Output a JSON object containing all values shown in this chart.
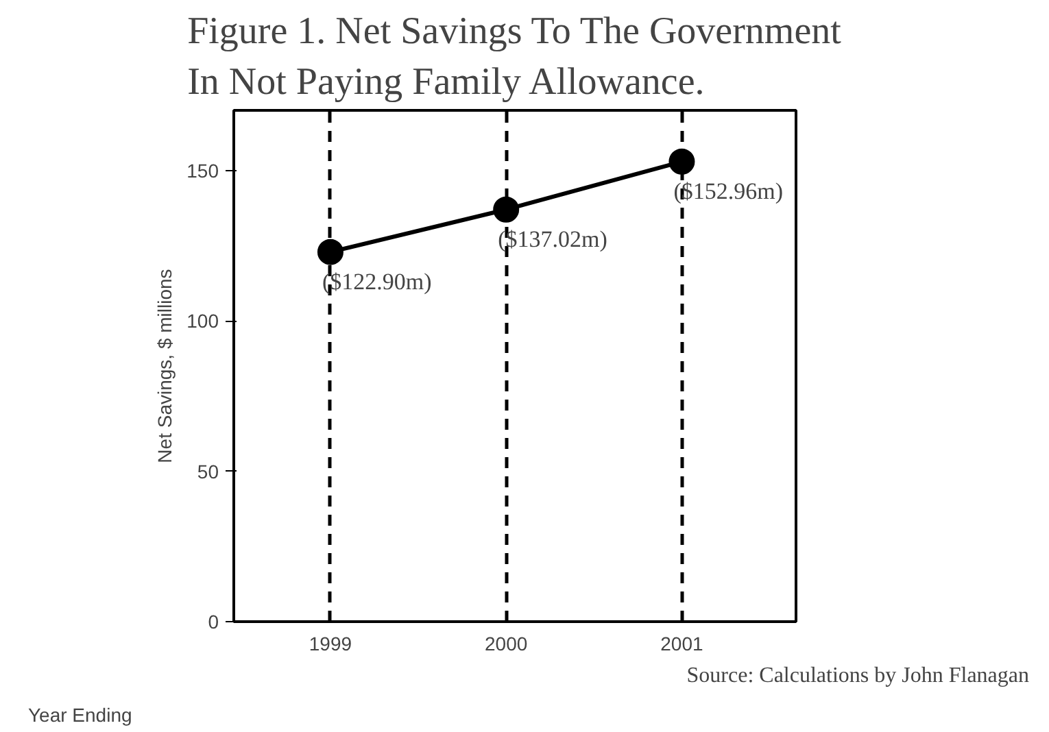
{
  "chart_data": {
    "type": "line",
    "title": "Figure 1. Net Savings To The Government\nIn Not Paying Family Allowance.",
    "xlabel": "Year Ending",
    "ylabel": "Net Savings, $ millions",
    "categories": [
      "1999",
      "2000",
      "2001"
    ],
    "series": [
      {
        "color": "#000000",
        "values": [
          122.9,
          137.02,
          152.96
        ],
        "value_labels": [
          "($122.90m)",
          "($137.02m)",
          "($152.96m)"
        ]
      }
    ],
    "ylim": [
      0,
      170
    ],
    "yticks": [
      0,
      50,
      100,
      150
    ],
    "grid": "x",
    "marker": "circle",
    "line_style": "solid",
    "annotations": [
      "Source: Calculations by John Flanagan"
    ]
  }
}
